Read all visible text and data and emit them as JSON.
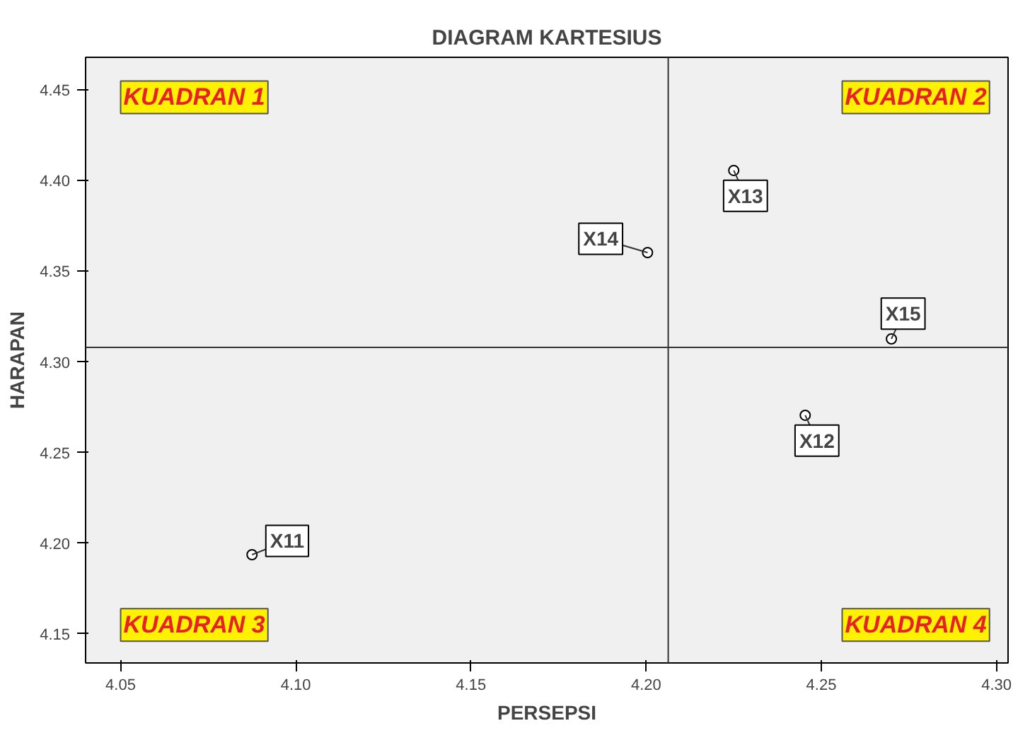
{
  "chart_data": {
    "type": "scatter",
    "title": "DIAGRAM KARTESIUS",
    "xlabel": "PERSEPSI",
    "ylabel": "HARAPAN",
    "x": [
      4.0875,
      4.2454,
      4.225,
      4.2004,
      4.27
    ],
    "series": [
      {
        "color": "#000000",
        "values": [
          4.1937,
          4.2706,
          4.4056,
          4.3603,
          4.3127
        ]
      }
    ],
    "marker": "circle",
    "grid": false,
    "xlim": [
      4.04,
      4.3033
    ],
    "ylim": [
      4.134,
      4.468
    ],
    "xticks": [
      4.05,
      {
        "value": 4.1,
        "label": "4.10"
      },
      4.15,
      {
        "value": 4.2,
        "label": "4.20"
      },
      4.25,
      {
        "value": 4.3,
        "label": "4.30"
      }
    ],
    "yticks": [
      4.15,
      {
        "value": 4.2,
        "label": "4.20"
      },
      4.25,
      {
        "value": 4.3,
        "label": "4.30"
      },
      4.35,
      {
        "value": 4.4,
        "label": "4.40"
      },
      4.45
    ],
    "ref_lines": [
      {
        "axis": "x",
        "value": 4.2063
      },
      {
        "axis": "y",
        "value": 4.308
      }
    ],
    "annotations": [
      {
        "text": "X11",
        "x": 4.0875,
        "y": 4.1937
      },
      {
        "text": "X12",
        "x": 4.2454,
        "y": 4.2706
      },
      {
        "text": "X13",
        "x": 4.225,
        "y": 4.4056
      },
      {
        "text": "X14",
        "x": 4.2004,
        "y": 4.3603
      },
      {
        "text": "X15",
        "x": 4.27,
        "y": 4.3127
      },
      "KUADRAN 1",
      "KUADRAN 2",
      "KUADRAN 3",
      "KUADRAN 4"
    ]
  }
}
